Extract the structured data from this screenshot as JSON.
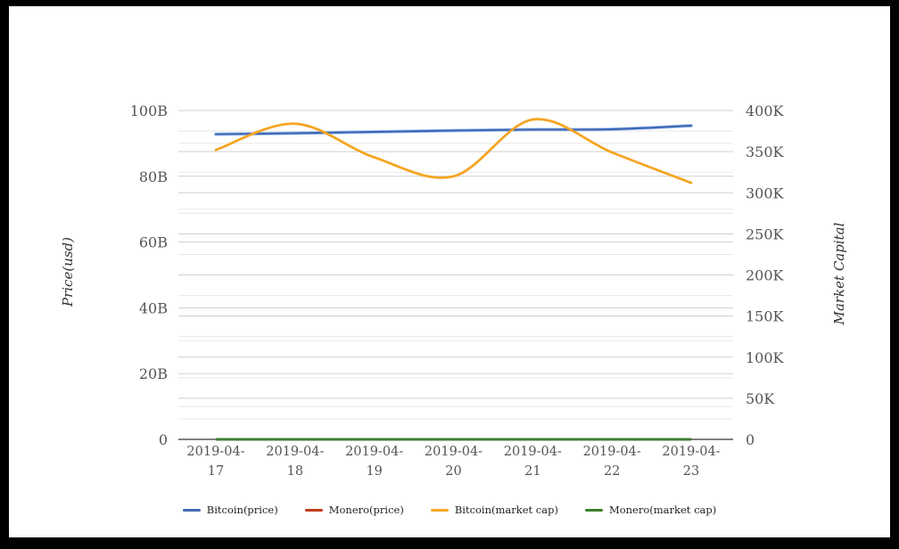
{
  "window": {
    "background": "#ffffff",
    "frame_color": "#000000"
  },
  "chart_data": {
    "type": "line",
    "title": "",
    "x": [
      "2019-04-17",
      "2019-04-18",
      "2019-04-19",
      "2019-04-20",
      "2019-04-21",
      "2019-04-22",
      "2019-04-23"
    ],
    "series": [
      {
        "name": "Bitcoin(price)",
        "axis": "left",
        "color": "#3f68b4",
        "halo_color": "#a6c4f2",
        "values": [
          92.8,
          93.1,
          93.5,
          93.9,
          94.2,
          94.3,
          95.4
        ]
      },
      {
        "name": "Monero(price)",
        "axis": "left",
        "color": "#c33d1b",
        "values": [
          0,
          0,
          0,
          0,
          0,
          0,
          0
        ]
      },
      {
        "name": "Bitcoin(market cap)",
        "axis": "right",
        "color": "#f5a522",
        "values": [
          352,
          384,
          343,
          320,
          389,
          349,
          312
        ]
      },
      {
        "name": "Monero(market cap)",
        "axis": "right",
        "color": "#3c7e2f",
        "values": [
          0,
          0,
          0,
          0,
          0,
          0,
          0
        ]
      }
    ],
    "left_axis": {
      "title": "Price(usd)",
      "unit": "B",
      "min": 0,
      "max": 100,
      "major_step": 20,
      "minor_step": 10,
      "tick_labels": [
        "0",
        "20B",
        "40B",
        "60B",
        "80B",
        "100B"
      ]
    },
    "right_axis": {
      "title": "Market Capital",
      "unit": "K",
      "min": 0,
      "max": 400,
      "major_step": 50,
      "minor_step": 25,
      "tick_labels": [
        "0",
        "50K",
        "100K",
        "150K",
        "200K",
        "250K",
        "300K",
        "350K",
        "400K"
      ]
    },
    "legend": [
      "Bitcoin(price)",
      "Monero(price)",
      "Bitcoin(market cap)",
      "Monero(market cap)"
    ],
    "legend_position": "bottom",
    "grid": true,
    "colors": {
      "axis_line": "#333333",
      "grid_major": "#cfcfcf",
      "grid_minor": "#e8e8e8",
      "tick_text": "#555555"
    }
  }
}
